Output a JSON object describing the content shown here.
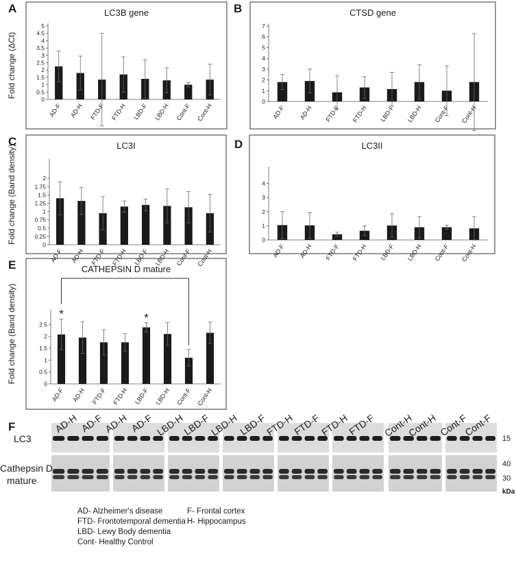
{
  "chart_data": [
    {
      "type": "bar",
      "panel": "A",
      "title": "LC3B gene",
      "y_label": "Fold change (ΔCt)",
      "color": "#1a1a1a",
      "categories": [
        "AD-F",
        "AD-H",
        "FTD-F",
        "FTD-H",
        "LBD-F",
        "LBD-H",
        "Cont-F",
        "Cont-H"
      ],
      "values": [
        2.25,
        1.8,
        1.35,
        1.7,
        1.4,
        1.3,
        1,
        1.35
      ],
      "errors": [
        1.05,
        1.15,
        3.15,
        1.2,
        1.3,
        0.85,
        0.15,
        1.05
      ],
      "ylim": [
        0,
        5
      ],
      "yticks": [
        0,
        0.5,
        1,
        1.5,
        2,
        2.5,
        3,
        3.5,
        4,
        4.5,
        5
      ]
    },
    {
      "type": "bar",
      "panel": "B",
      "title": "CTSD gene",
      "color": "#1a1a1a",
      "categories": [
        "AD-F",
        "AD-H",
        "FTD-F",
        "FTD-H",
        "LBD-F",
        "LBD-H",
        "Cont-F",
        "Cont-H"
      ],
      "values": [
        1.8,
        1.9,
        0.85,
        1.3,
        1.15,
        1.8,
        1,
        1.8
      ],
      "errors": [
        0.7,
        1.1,
        1.55,
        1,
        1.55,
        1.6,
        2.3,
        4.5
      ],
      "ylim": [
        0,
        7
      ],
      "yticks": [
        0,
        1,
        2,
        3,
        4,
        5,
        6,
        7
      ]
    },
    {
      "type": "bar",
      "panel": "C",
      "title": "LC3I",
      "y_label": "Fold change (Band density)",
      "color": "#1a1a1a",
      "categories": [
        "AD-F",
        "AD-H",
        "FTD-F",
        "FTD-H",
        "LBD-F",
        "LBD-H",
        "Cont-F",
        "Cont-H"
      ],
      "values": [
        1.4,
        1.32,
        0.95,
        1.15,
        1.2,
        1.17,
        1.13,
        0.95
      ],
      "errors": [
        0.5,
        0.41,
        0.5,
        0.17,
        0.18,
        0.51,
        0.47,
        0.57
      ],
      "ylim": [
        0,
        2.5
      ],
      "yticks": [
        0,
        0.25,
        0.5,
        0.75,
        1,
        1.25,
        1.5,
        1.75,
        2
      ]
    },
    {
      "type": "bar",
      "panel": "D",
      "title": "LC3II",
      "color": "#1a1a1a",
      "categories": [
        "AD-F",
        "AD-H",
        "FTD-F",
        "FTD-H",
        "LBD-F",
        "LBD-H",
        "Cont-F",
        "Cont-H"
      ],
      "values": [
        1.05,
        1.03,
        0.4,
        0.65,
        1.02,
        0.9,
        0.9,
        0.82
      ],
      "errors": [
        0.95,
        0.92,
        0.15,
        0.35,
        0.83,
        0.75,
        0.15,
        0.83
      ],
      "ylim": [
        0,
        5
      ],
      "yticks": [
        0,
        1,
        2,
        3,
        4
      ]
    },
    {
      "type": "bar",
      "panel": "E",
      "title": "CATHEPSIN D mature",
      "y_label": "Fold change (Band density)",
      "color": "#1a1a1a",
      "categories": [
        "AD-F",
        "AD-H",
        "FTD-F",
        "FTD-H",
        "LBD-F",
        "LBD-H",
        "Cont-F",
        "Cont-H"
      ],
      "values": [
        2.08,
        1.95,
        1.75,
        1.75,
        2.38,
        2.1,
        1.1,
        2.15
      ],
      "errors": [
        0.64,
        0.67,
        0.53,
        0.37,
        0.19,
        0.48,
        0.35,
        0.45
      ],
      "ylim": [
        0,
        3
      ],
      "yticks": [
        0,
        0.5,
        1,
        1.5,
        2,
        2.5
      ],
      "annotations": [
        {
          "text": "*",
          "category": "AD-F"
        },
        {
          "text": "*",
          "category": "LBD-F"
        }
      ]
    }
  ],
  "blot": {
    "panel": "F",
    "lanes": [
      "AD-H",
      "AD-F",
      "AD-H",
      "AD-F",
      "LBD-H",
      "LBD-F",
      "LBD-H",
      "LBD-F",
      "FTD-H",
      "FTD-F",
      "FTD-H",
      "FTD-F",
      "Cont-H",
      "Cont-H",
      "Cont-F",
      "Cont-F"
    ],
    "rows": [
      [
        "LC3"
      ],
      [
        "Cathepsin D",
        "mature"
      ]
    ],
    "markers": [
      "15",
      "40",
      "30",
      "kDa"
    ]
  },
  "legend": {
    "abbreviations": [
      "AD- Alzheimer's disease",
      "FTD- Frontotemporal dementia",
      "LBD- Lewy Body dementia",
      "Cont- Healthy Control"
    ],
    "regions": [
      "F- Frontal cortex",
      "H- Hippocampus"
    ]
  }
}
